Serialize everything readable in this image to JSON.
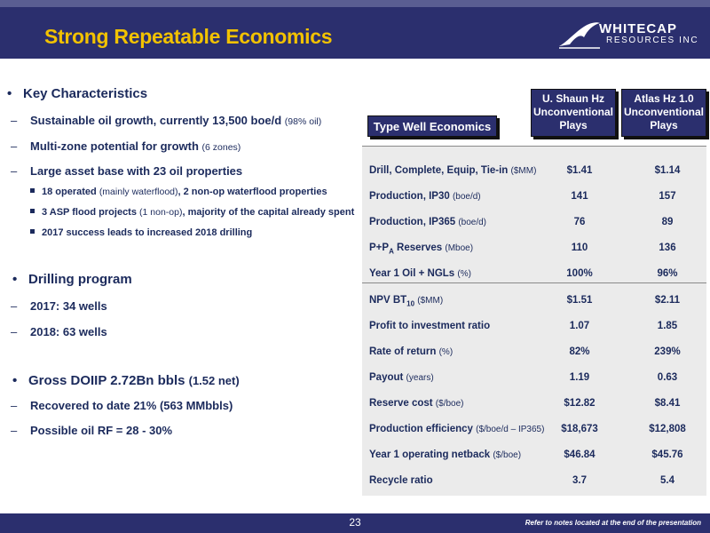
{
  "header": {
    "title": "Strong Repeatable Economics",
    "logo_name": "WHITECAP",
    "logo_sub": "RESOURCES INC"
  },
  "left": {
    "key_title": "Key Characteristics",
    "key_items": [
      {
        "text": "Sustainable oil growth, currently 13,500 boe/d ",
        "note": "(98% oil)"
      },
      {
        "text": "Multi-zone potential for growth ",
        "note": "(6 zones)"
      },
      {
        "text": "Large asset base with 23 oil properties",
        "note": ""
      }
    ],
    "sub_items": [
      {
        "a": "18 operated ",
        "b": "(mainly waterflood)",
        "c": ", 2 non-op waterflood properties"
      },
      {
        "a": "3 ASP flood projects ",
        "b": "(1 non-op)",
        "c": ", majority of the capital already spent"
      },
      {
        "a": "2017 success leads to increased 2018 drilling",
        "b": "",
        "c": ""
      }
    ],
    "drilling_title": "Drilling program",
    "drilling_items": [
      "2017:  34 wells",
      "2018:  63 wells"
    ],
    "gross_title": "Gross DOIIP 2.72Bn bbls ",
    "gross_note": "(1.52 net)",
    "gross_items": [
      "Recovered to date 21% (563 MMbbls)",
      "Possible oil RF = 28 - 30%"
    ]
  },
  "table": {
    "type_label": "Type Well Economics",
    "col1": [
      "U. Shaun Hz",
      "Unconventional",
      "Plays"
    ],
    "col2": [
      "Atlas Hz 1.0",
      "Unconventional",
      "Plays"
    ],
    "rows": [
      {
        "label": "Drill, Complete, Equip, Tie-in ",
        "unit": "($MM)",
        "v1": "$1.41",
        "v2": "$1.14"
      },
      {
        "label": "Production, IP30 ",
        "unit": "(boe/d)",
        "v1": "141",
        "v2": "157"
      },
      {
        "label": "Production, IP365 ",
        "unit": "(boe/d)",
        "v1": "76",
        "v2": "89"
      },
      {
        "label": "P+P",
        "sub": "A",
        "label2": " Reserves ",
        "unit": "(Mboe)",
        "v1": "110",
        "v2": "136"
      },
      {
        "label": "Year 1 Oil + NGLs ",
        "unit": "(%)",
        "v1": "100%",
        "v2": "96%"
      },
      {
        "label": "NPV BT",
        "sub": "10",
        "label2": " ",
        "unit": "($MM)",
        "v1": "$1.51",
        "v2": "$2.11"
      },
      {
        "label": "Profit to investment ratio",
        "unit": "",
        "v1": "1.07",
        "v2": "1.85"
      },
      {
        "label": "Rate of return ",
        "unit": "(%)",
        "v1": "82%",
        "v2": "239%"
      },
      {
        "label": "Payout ",
        "unit": "(years)",
        "v1": "1.19",
        "v2": "0.63"
      },
      {
        "label": "Reserve cost ",
        "unit": "($/boe)",
        "v1": "$12.82",
        "v2": "$8.41"
      },
      {
        "label": "Production efficiency ",
        "unit": "($/boe/d – IP365)",
        "v1": "$18,673",
        "v2": "$12,808"
      },
      {
        "label": "Year 1 operating netback ",
        "unit": "($/boe)",
        "v1": "$46.84",
        "v2": "$45.76"
      },
      {
        "label": "Recycle ratio",
        "unit": "",
        "v1": "3.7",
        "v2": "5.4"
      }
    ]
  },
  "footer": {
    "page": "23",
    "note": "Refer to notes located at the end of the presentation"
  },
  "colors": {
    "navy": "#2b2f6e",
    "gold": "#f2c200",
    "text": "#1b2a5c"
  }
}
